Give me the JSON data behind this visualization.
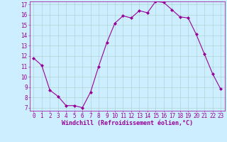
{
  "x": [
    0,
    1,
    2,
    3,
    4,
    5,
    6,
    7,
    8,
    9,
    10,
    11,
    12,
    13,
    14,
    15,
    16,
    17,
    18,
    19,
    20,
    21,
    22,
    23
  ],
  "y": [
    11.8,
    11.1,
    8.7,
    8.1,
    7.2,
    7.2,
    7.0,
    8.5,
    11.0,
    13.3,
    15.2,
    15.9,
    15.7,
    16.4,
    16.2,
    17.3,
    17.2,
    16.5,
    15.8,
    15.7,
    14.1,
    12.2,
    10.3,
    8.8
  ],
  "line_color": "#990099",
  "marker": "D",
  "marker_size": 2,
  "background_color": "#cceeff",
  "grid_color": "#aacccc",
  "xlabel": "Windchill (Refroidissement éolien,°C)",
  "xlabel_color": "#990099",
  "tick_color": "#990099",
  "axis_color": "#990099",
  "ylim_min": 7,
  "ylim_max": 17,
  "xlim_min": 0,
  "xlim_max": 23,
  "yticks": [
    7,
    8,
    9,
    10,
    11,
    12,
    13,
    14,
    15,
    16,
    17
  ],
  "xticks": [
    0,
    1,
    2,
    3,
    4,
    5,
    6,
    7,
    8,
    9,
    10,
    11,
    12,
    13,
    14,
    15,
    16,
    17,
    18,
    19,
    20,
    21,
    22,
    23
  ],
  "tick_fontsize": 5.5,
  "xlabel_fontsize": 6.0
}
